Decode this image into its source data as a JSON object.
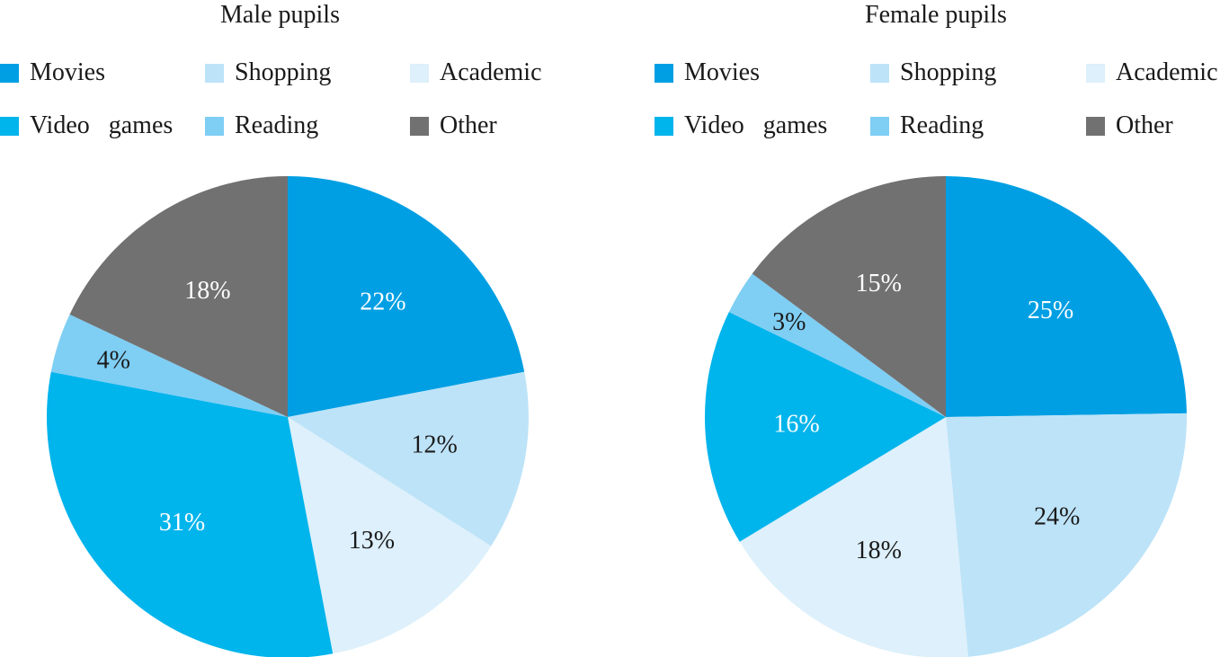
{
  "chart_data": [
    {
      "type": "pie",
      "title": "Male pupils",
      "categories": [
        "Movies",
        "Shopping",
        "Academic",
        "Video games",
        "Reading",
        "Other"
      ],
      "values": [
        22,
        12,
        13,
        31,
        4,
        18
      ],
      "labels": [
        "22%",
        "12%",
        "13%",
        "31%",
        "4%",
        "18%"
      ],
      "colors": [
        "#009fe3",
        "#bde3f8",
        "#ddf0fb",
        "#00b4ec",
        "#7fcef4",
        "#717171"
      ],
      "label_colors": [
        "#ffffff",
        "#1a1a1a",
        "#1a1a1a",
        "#ffffff",
        "#1a1a1a",
        "#ffffff"
      ],
      "legend_order": [
        "Movies",
        "Shopping",
        "Academic",
        "Video games",
        "Reading",
        "Other"
      ],
      "legend_placement": "top",
      "start_angle_deg": 0,
      "direction": "clockwise"
    },
    {
      "type": "pie",
      "title": "Female pupils",
      "categories": [
        "Movies",
        "Shopping",
        "Academic",
        "Video games",
        "Reading",
        "Other"
      ],
      "values": [
        25,
        24,
        18,
        16,
        3,
        15
      ],
      "labels": [
        "25%",
        "24%",
        "18%",
        "16%",
        "3%",
        "15%"
      ],
      "colors": [
        "#009fe3",
        "#bde3f8",
        "#ddf0fb",
        "#00b4ec",
        "#7fcef4",
        "#717171"
      ],
      "label_colors": [
        "#ffffff",
        "#1a1a1a",
        "#1a1a1a",
        "#ffffff",
        "#1a1a1a",
        "#ffffff"
      ],
      "legend_order": [
        "Movies",
        "Shopping",
        "Academic",
        "Video games",
        "Reading",
        "Other"
      ],
      "legend_placement": "top",
      "start_angle_deg": 0,
      "direction": "clockwise"
    }
  ]
}
